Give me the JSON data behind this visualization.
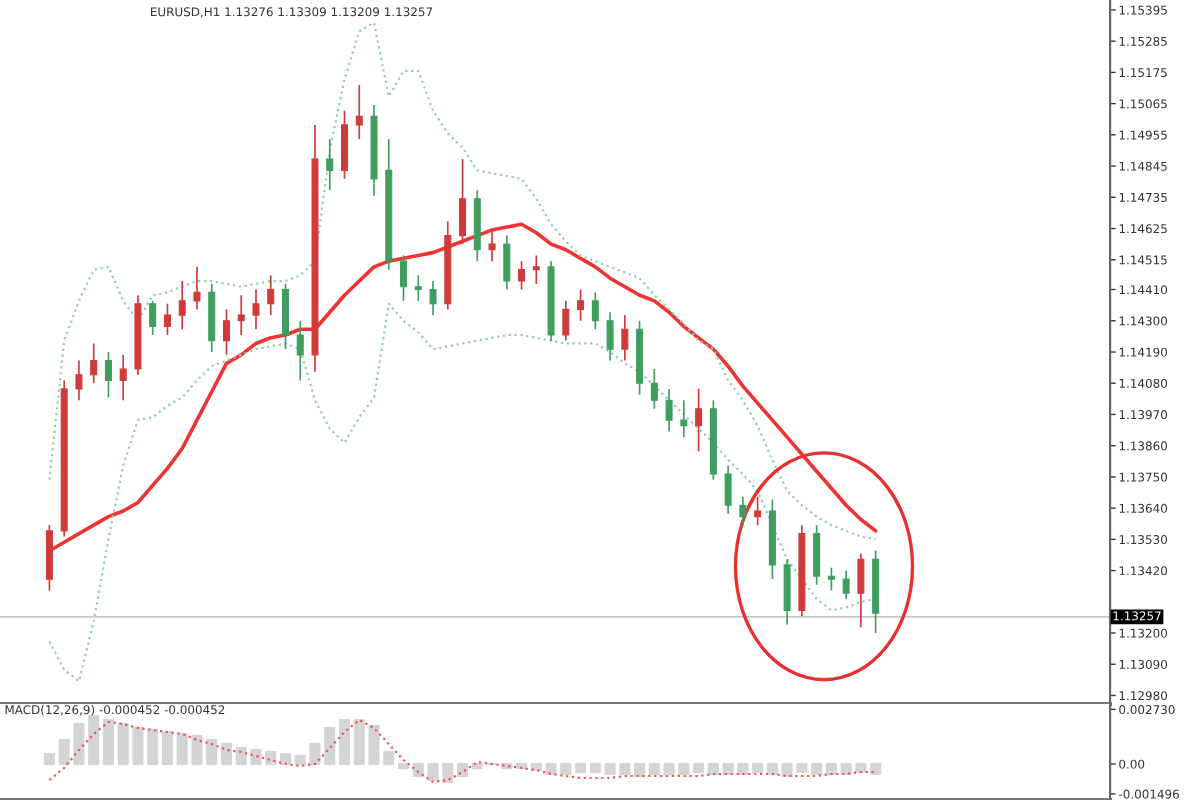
{
  "chart_data": [
    {
      "type": "candlestick",
      "title": "EURUSD,H1 1.13276 1.13309 1.13209 1.13257",
      "categories": [
        null,
        null,
        null,
        null,
        null,
        null,
        null,
        null,
        null,
        null,
        null,
        null,
        null,
        null,
        null,
        null,
        null,
        null,
        null,
        null,
        null,
        null,
        null,
        null,
        null,
        null,
        null,
        null,
        null,
        null,
        null,
        null,
        null,
        null,
        null,
        null,
        null,
        null,
        null,
        null,
        null,
        null,
        null,
        null,
        null,
        null,
        null,
        null,
        null,
        null,
        null,
        null,
        null,
        null,
        null,
        null,
        null
      ],
      "ohlc": [
        [
          1.1339,
          1.1358,
          1.1335,
          1.1356
        ],
        [
          1.1356,
          1.1409,
          1.1354,
          1.1406
        ],
        [
          1.1406,
          1.1416,
          1.1402,
          1.1411
        ],
        [
          1.1411,
          1.1422,
          1.1408,
          1.1416
        ],
        [
          1.1416,
          1.1419,
          1.1403,
          1.1409
        ],
        [
          1.1409,
          1.1418,
          1.1402,
          1.1413
        ],
        [
          1.1413,
          1.1439,
          1.1411,
          1.1436
        ],
        [
          1.1436,
          1.1437,
          1.1425,
          1.1428
        ],
        [
          1.1428,
          1.1436,
          1.1425,
          1.1432
        ],
        [
          1.1432,
          1.1444,
          1.1427,
          1.1437
        ],
        [
          1.1437,
          1.1449,
          1.1434,
          1.144
        ],
        [
          1.144,
          1.1443,
          1.1419,
          1.1423
        ],
        [
          1.1423,
          1.1434,
          1.1418,
          1.143
        ],
        [
          1.143,
          1.1439,
          1.1425,
          1.1432
        ],
        [
          1.1432,
          1.1441,
          1.1427,
          1.1436
        ],
        [
          1.1436,
          1.1446,
          1.1432,
          1.1441
        ],
        [
          1.1441,
          1.1443,
          1.142,
          1.1425
        ],
        [
          1.1425,
          1.143,
          1.1409,
          1.1418
        ],
        [
          1.1418,
          1.1499,
          1.1412,
          1.1487
        ],
        [
          1.1487,
          1.1494,
          1.1476,
          1.1483
        ],
        [
          1.1483,
          1.1504,
          1.148,
          1.1499
        ],
        [
          1.1499,
          1.1513,
          1.1494,
          1.1502
        ],
        [
          1.1502,
          1.1506,
          1.1474,
          1.148
        ],
        [
          1.1483,
          1.1494,
          1.1448,
          1.1451
        ],
        [
          1.1451,
          1.1453,
          1.1437,
          1.1442
        ],
        [
          1.1442,
          1.1446,
          1.1437,
          1.1441
        ],
        [
          1.1441,
          1.1444,
          1.1432,
          1.1436
        ],
        [
          1.1436,
          1.1465,
          1.1434,
          1.146
        ],
        [
          1.146,
          1.1487,
          1.1457,
          1.1473
        ],
        [
          1.1473,
          1.1476,
          1.1451,
          1.1455
        ],
        [
          1.1455,
          1.1462,
          1.1451,
          1.1457
        ],
        [
          1.1457,
          1.146,
          1.1441,
          1.1444
        ],
        [
          1.1444,
          1.1451,
          1.1441,
          1.1448
        ],
        [
          1.1448,
          1.1453,
          1.1443,
          1.1449
        ],
        [
          1.1449,
          1.1451,
          1.1423,
          1.1425
        ],
        [
          1.1425,
          1.1437,
          1.1423,
          1.1434
        ],
        [
          1.1434,
          1.1441,
          1.143,
          1.1437
        ],
        [
          1.1437,
          1.144,
          1.1427,
          1.143
        ],
        [
          1.143,
          1.1433,
          1.1416,
          1.142
        ],
        [
          1.142,
          1.1432,
          1.1416,
          1.1427
        ],
        [
          1.1427,
          1.143,
          1.1404,
          1.1408
        ],
        [
          1.1408,
          1.1413,
          1.1399,
          1.1402
        ],
        [
          1.1402,
          1.1406,
          1.1391,
          1.1395
        ],
        [
          1.1395,
          1.1402,
          1.1389,
          1.1393
        ],
        [
          1.1393,
          1.1406,
          1.1384,
          1.1399
        ],
        [
          1.1399,
          1.1402,
          1.1374,
          1.1376
        ],
        [
          1.1376,
          1.1379,
          1.1362,
          1.1365
        ],
        [
          1.1365,
          1.1368,
          1.1358,
          1.1361
        ],
        [
          1.1361,
          1.1368,
          1.1358,
          1.1363
        ],
        [
          1.1363,
          1.1367,
          1.1339,
          1.1344
        ],
        [
          1.1344,
          1.1346,
          1.1323,
          1.1328
        ],
        [
          1.1328,
          1.1358,
          1.1326,
          1.1355
        ],
        [
          1.1355,
          1.1358,
          1.1337,
          1.134
        ],
        [
          1.134,
          1.1343,
          1.1335,
          1.1339
        ],
        [
          1.1339,
          1.1342,
          1.1332,
          1.1334
        ],
        [
          1.1334,
          1.1348,
          1.1322,
          1.1346
        ],
        [
          1.1346,
          1.1349,
          1.132,
          1.1327
        ]
      ],
      "colors": [
        "#d03a3a",
        "#d03a3a",
        "#d03a3a",
        "#d03a3a",
        "#3f9e5f",
        "#d03a3a",
        "#d03a3a",
        "#3f9e5f",
        "#d03a3a",
        "#d03a3a",
        "#d03a3a",
        "#3f9e5f",
        "#d03a3a",
        "#d03a3a",
        "#d03a3a",
        "#d03a3a",
        "#3f9e5f",
        "#3f9e5f",
        "#d03a3a",
        "#3f9e5f",
        "#d03a3a",
        "#d03a3a",
        "#3f9e5f",
        "#3f9e5f",
        "#3f9e5f",
        "#3f9e5f",
        "#3f9e5f",
        "#d03a3a",
        "#d03a3a",
        "#3f9e5f",
        "#d03a3a",
        "#3f9e5f",
        "#d03a3a",
        "#d03a3a",
        "#3f9e5f",
        "#d03a3a",
        "#d03a3a",
        "#3f9e5f",
        "#3f9e5f",
        "#d03a3a",
        "#3f9e5f",
        "#3f9e5f",
        "#3f9e5f",
        "#3f9e5f",
        "#d03a3a",
        "#3f9e5f",
        "#3f9e5f",
        "#3f9e5f",
        "#d03a3a",
        "#3f9e5f",
        "#3f9e5f",
        "#d03a3a",
        "#3f9e5f",
        "#3f9e5f",
        "#3f9e5f",
        "#d03a3a",
        "#3f9e5f"
      ],
      "series": [
        {
          "type": "line",
          "color": "#ee3333",
          "values": [
            1.1349,
            1.1352,
            1.1355,
            1.1358,
            1.1361,
            1.1363,
            1.1366,
            1.1372,
            1.1378,
            1.1385,
            1.1395,
            1.1405,
            1.1415,
            1.1418,
            1.1422,
            1.1424,
            1.1425,
            1.1427,
            1.1427,
            1.1433,
            1.1439,
            1.1444,
            1.1449,
            1.1451,
            1.1452,
            1.1453,
            1.1454,
            1.1456,
            1.1458,
            1.146,
            1.1462,
            1.1463,
            1.1464,
            1.1461,
            1.1457,
            1.1455,
            1.1452,
            1.1449,
            1.1445,
            1.1442,
            1.1439,
            1.1437,
            1.1433,
            1.1428,
            1.1424,
            1.142,
            1.1414,
            1.1407,
            1.1401,
            1.1395,
            1.1389,
            1.1383,
            1.1377,
            1.1371,
            1.1365,
            1.136,
            1.1356
          ]
        },
        {
          "type": "line",
          "color": "#8fd0a8",
          "line_style": "dotted",
          "values": [
            1.1374,
            1.1423,
            1.1437,
            1.1448,
            1.1449,
            1.1437,
            1.143,
            1.1439,
            1.144,
            1.1442,
            1.1444,
            1.1444,
            1.1443,
            1.1442,
            1.1443,
            1.1444,
            1.1444,
            1.1446,
            1.1451,
            1.149,
            1.1515,
            1.1532,
            1.1535,
            1.1509,
            1.1518,
            1.1518,
            1.1504,
            1.1496,
            1.1491,
            1.1483,
            1.1482,
            1.1481,
            1.148,
            1.1473,
            1.1464,
            1.1458,
            1.1453,
            1.1451,
            1.1449,
            1.1447,
            1.1445,
            1.1439,
            1.1434,
            1.1429,
            1.1423,
            1.142,
            1.1409,
            1.1402,
            1.1393,
            1.1381,
            1.137,
            1.1365,
            1.1361,
            1.1358,
            1.1356,
            1.1354,
            1.1353
          ]
        },
        {
          "type": "line",
          "color": "#8fd0a8",
          "line_style": "dotted",
          "values": [
            1.1317,
            1.1307,
            1.1303,
            1.1324,
            1.1353,
            1.1379,
            1.1395,
            1.1396,
            1.14,
            1.1403,
            1.1409,
            1.1414,
            1.1416,
            1.1418,
            1.142,
            1.1421,
            1.1422,
            1.142,
            1.1402,
            1.1392,
            1.1387,
            1.1396,
            1.1403,
            1.1436,
            1.143,
            1.1426,
            1.142,
            1.1421,
            1.1422,
            1.1423,
            1.1424,
            1.1425,
            1.1425,
            1.1424,
            1.1423,
            1.1422,
            1.1422,
            1.1422,
            1.1419,
            1.1415,
            1.1412,
            1.1407,
            1.1402,
            1.1397,
            1.1392,
            1.1387,
            1.1381,
            1.1376,
            1.137,
            1.1358,
            1.1346,
            1.1339,
            1.1332,
            1.1328,
            1.1329,
            1.1331,
            1.1332
          ]
        }
      ],
      "ylim": [
        1.1295,
        1.1543
      ],
      "yticks": [
        1.15395,
        1.15285,
        1.15175,
        1.15065,
        1.14955,
        1.14845,
        1.14735,
        1.14625,
        1.14515,
        {
          "value": 1.1441,
          "label": "1.14410"
        },
        {
          "value": 1.143,
          "label": "1.14300"
        },
        {
          "value": 1.1419,
          "label": "1.14190"
        },
        {
          "value": 1.1408,
          "label": "1.14080"
        },
        {
          "value": 1.1397,
          "label": "1.13970"
        },
        {
          "value": 1.1386,
          "label": "1.13860"
        },
        {
          "value": 1.1375,
          "label": "1.13750"
        },
        {
          "value": 1.1364,
          "label": "1.13640"
        },
        {
          "value": 1.1353,
          "label": "1.13530"
        },
        {
          "value": 1.1342,
          "label": "1.13420"
        },
        {
          "value": 1.132,
          "label": "1.13200"
        },
        {
          "value": 1.1309,
          "label": "1.13090"
        },
        {
          "value": 1.1298,
          "label": "1.12980"
        }
      ],
      "ref_lines": [
        {
          "axis": "y",
          "value": 1.13257,
          "label": "1.13257",
          "color": "#c8c8c8"
        }
      ],
      "tick_labels": "y"
    },
    {
      "type": "bar",
      "title": "MACD(12,26,9) -0.000452 -0.000452",
      "categories": [
        null,
        null,
        null,
        null,
        null,
        null,
        null,
        null,
        null,
        null,
        null,
        null,
        null,
        null,
        null,
        null,
        null,
        null,
        null,
        null,
        null,
        null,
        null,
        null,
        null,
        null,
        null,
        null,
        null,
        null,
        null,
        null,
        null,
        null,
        null,
        null,
        null,
        null,
        null,
        null,
        null,
        null,
        null,
        null,
        null,
        null,
        null,
        null,
        null,
        null,
        null,
        null,
        null,
        null,
        null,
        null,
        null
      ],
      "series": [
        {
          "type": "bar",
          "color": "#d4d4d4",
          "values": [
            0.0005,
            0.0012,
            0.002,
            0.0024,
            0.0022,
            0.002,
            0.0018,
            0.0017,
            0.0016,
            0.0015,
            0.0014,
            0.0012,
            0.001,
            0.0008,
            0.0007,
            0.0006,
            0.0005,
            0.0004,
            0.001,
            0.0018,
            0.0022,
            0.0022,
            0.0019,
            0.0006,
            -0.0002,
            -0.0006,
            -0.0008,
            -0.0009,
            -0.0006,
            -0.0002,
            0.0,
            -0.0002,
            -0.0002,
            -0.0003,
            -0.0005,
            -0.0005,
            -0.0004,
            -0.0004,
            -0.0005,
            -0.0005,
            -0.0006,
            -0.0005,
            -0.0005,
            -0.0005,
            -0.0004,
            -0.0005,
            -0.0005,
            -0.0005,
            -0.0004,
            -0.0005,
            -0.0006,
            -0.0004,
            -0.0005,
            -0.0005,
            -0.0005,
            -0.0004,
            -0.0005
          ]
        },
        {
          "type": "line",
          "color": "#ee5555",
          "line_style": "dotted",
          "values": [
            -0.0008,
            -0.0002,
            0.0007,
            0.0015,
            0.0021,
            0.002,
            0.0018,
            0.0017,
            0.0016,
            0.0015,
            0.0012,
            0.001,
            0.0007,
            0.0006,
            0.0004,
            0.0002,
            0.0,
            -0.0001,
            0.0,
            0.0008,
            0.0016,
            0.0022,
            0.0018,
            0.001,
            0.0002,
            -0.0004,
            -0.0009,
            -0.0008,
            -0.0004,
            0.0001,
            0.0,
            -0.0001,
            -0.0002,
            -0.0003,
            -0.0005,
            -0.0006,
            -0.0007,
            -0.0007,
            -0.0007,
            -0.0006,
            -0.0006,
            -0.0006,
            -0.0006,
            -0.0006,
            -0.0006,
            -0.0005,
            -0.0005,
            -0.0005,
            -0.0005,
            -0.0005,
            -0.0006,
            -0.0006,
            -0.0006,
            -0.0005,
            -0.0005,
            -0.0004,
            -0.0004
          ]
        }
      ],
      "ylim": [
        -0.0018,
        0.003
      ],
      "yticks": [
        {
          "value": 0.00273,
          "label": "0.002730"
        },
        {
          "value": 0,
          "label": "0.00"
        },
        {
          "value": -0.001496,
          "label": "-0.001496"
        }
      ],
      "tick_labels": "y"
    }
  ]
}
